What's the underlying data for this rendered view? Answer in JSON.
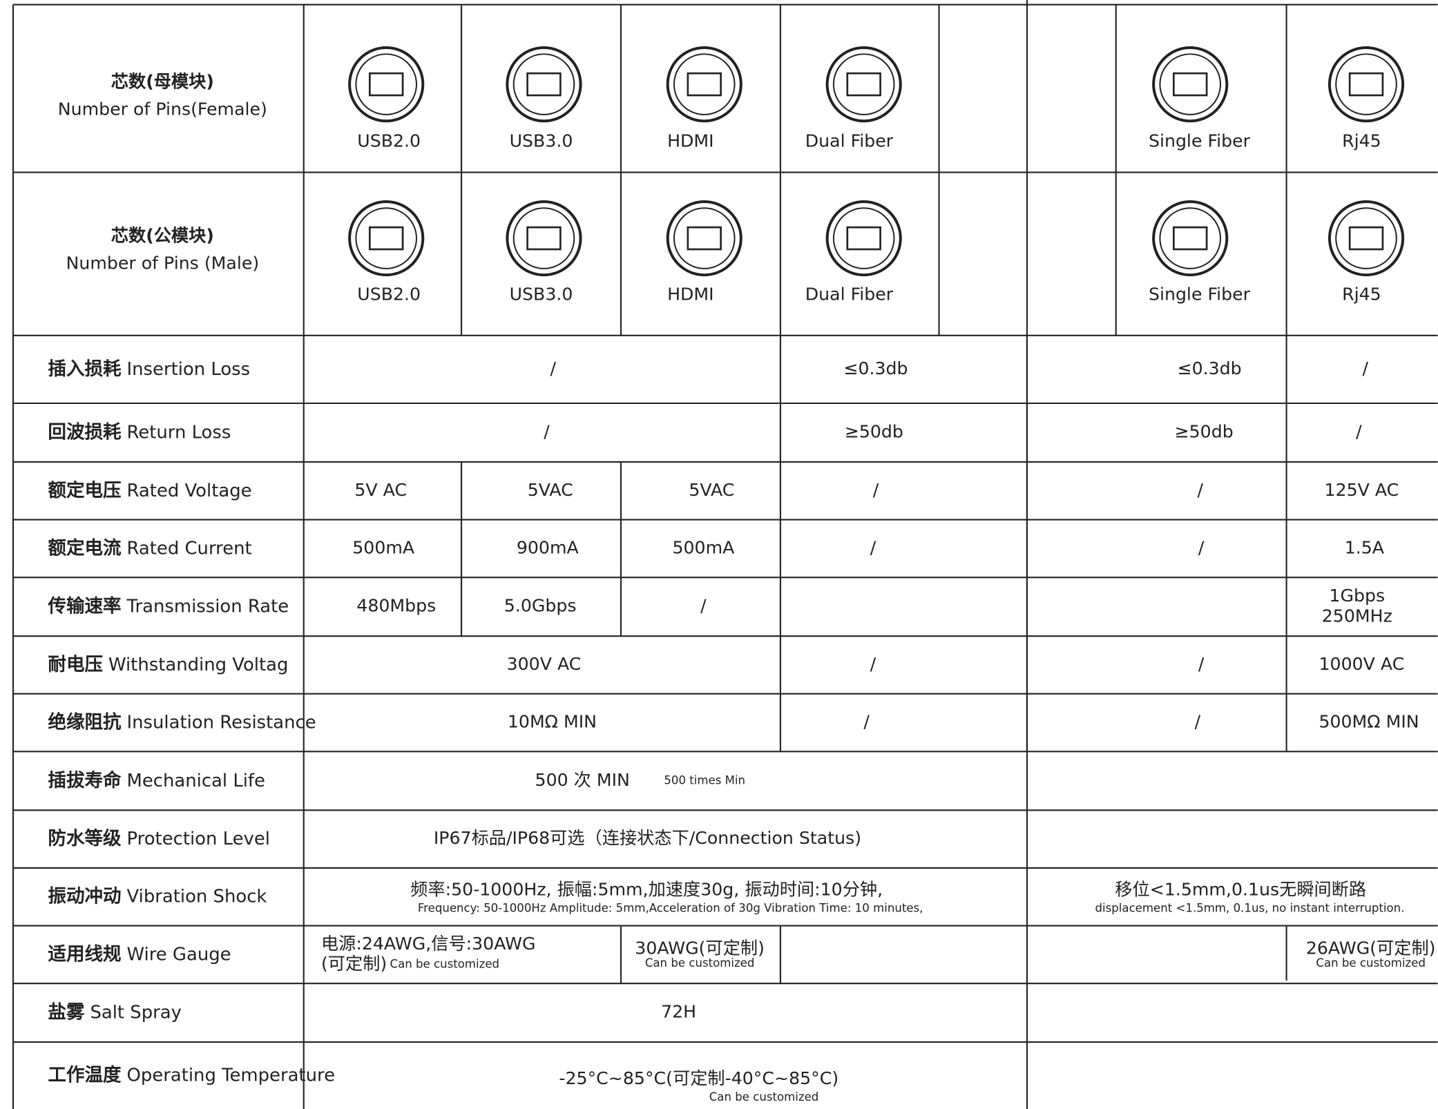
{
  "header_rows": [
    {
      "label_zh": "芯数(母模块)",
      "label_en": "Number of Pins(Female)",
      "connectors": [
        "USB2.0",
        "USB3.0",
        "HDMI",
        "Dual Fiber",
        "Single Fiber",
        "Rj45"
      ]
    },
    {
      "label_zh": "芯数(公模块)",
      "label_en": "Number of Pins (Male)",
      "connectors": [
        "USB2.0",
        "USB3.0",
        "HDMI",
        "Dual Fiber",
        "Single Fiber",
        "Rj45"
      ]
    }
  ],
  "spec_rows": [
    {
      "label_zh": "插入损耗",
      "label_en": "Insertion Loss",
      "cells": [
        {
          "text": "/"
        },
        {
          "text": "≤0.3db"
        },
        {
          "text": "≤0.3db"
        },
        {
          "text": "/"
        }
      ]
    },
    {
      "label_zh": "回波损耗",
      "label_en": "Return Loss",
      "cells": [
        {
          "text": "/"
        },
        {
          "text": "≥50db"
        },
        {
          "text": "≥50db"
        },
        {
          "text": "/"
        }
      ]
    },
    {
      "label_zh": "额定电压",
      "label_en": "Rated Voltage",
      "cells": [
        {
          "text": "5V AC"
        },
        {
          "text": "5VAC"
        },
        {
          "text": "5VAC"
        },
        {
          "text": "/"
        },
        {
          "text": "/"
        },
        {
          "text": "125V AC"
        }
      ]
    },
    {
      "label_zh": "额定电流",
      "label_en": "Rated Current",
      "cells": [
        {
          "text": "500mA"
        },
        {
          "text": "900mA"
        },
        {
          "text": "500mA"
        },
        {
          "text": "/"
        },
        {
          "text": "/"
        },
        {
          "text": "1.5A"
        }
      ]
    },
    {
      "label_zh": "传输速率",
      "label_en": "Transmission Rate",
      "cells": [
        {
          "text": "480Mbps"
        },
        {
          "text": "5.0Gbps"
        },
        {
          "text": "/"
        },
        {
          "text": "1Gbps",
          "text2": "250MHz"
        }
      ]
    },
    {
      "label_zh": "耐电压",
      "label_en": "Withstanding Voltag",
      "cells": [
        {
          "text": "300V AC"
        },
        {
          "text": "/"
        },
        {
          "text": "/"
        },
        {
          "text": "1000V AC"
        }
      ]
    },
    {
      "label_zh": "绝缘阻抗",
      "label_en": "Insulation Resistance",
      "cells": [
        {
          "text": "10MΩ  MIN"
        },
        {
          "text": "/"
        },
        {
          "text": "/"
        },
        {
          "text": "500MΩ  MIN"
        }
      ]
    },
    {
      "label_zh": "插拔寿命",
      "label_en": "Mechanical Life",
      "cells": [
        {
          "text": "500 次 MIN",
          "note": "500 times Min"
        }
      ]
    },
    {
      "label_zh": "防水等级",
      "label_en": "Protection Level",
      "cells": [
        {
          "text": "IP67标品/IP68可选（连接状态下/Connection Status)"
        }
      ]
    },
    {
      "label_zh": "振动冲动",
      "label_en": "Vibration Shock",
      "cells": [
        {
          "text": "频率:50-1000Hz, 振幅:5mm,加速度30g, 振动时间:10分钟,",
          "note": "Frequency: 50-1000Hz     Amplitude: 5mm,Acceleration of 30g          Vibration Time: 10 minutes,"
        },
        {
          "text": "移位<1.5mm,0.1us无瞬间断路",
          "note": "displacement <1.5mm, 0.1us, no instant interruption."
        }
      ]
    },
    {
      "label_zh": "适用线规",
      "label_en": "Wire Gauge",
      "cells": [
        {
          "text": "电源:24AWG,信号:30AWG",
          "text2": "(可定制)",
          "note": "Can be customized"
        },
        {
          "text": "30AWG(可定制)",
          "note": "Can be customized"
        },
        {
          "text": "26AWG(可定制)",
          "note": "Can be customized"
        }
      ]
    },
    {
      "label_zh": "盐雾",
      "label_en": "Salt Spray",
      "cells": [
        {
          "text": "72H"
        }
      ]
    },
    {
      "label_zh": "工作温度",
      "label_en": "Operating Temperature",
      "cells": [
        {
          "text": "-25°C~85°C(可定制-40°C~85°C)",
          "note": "Can be customized"
        }
      ]
    }
  ]
}
